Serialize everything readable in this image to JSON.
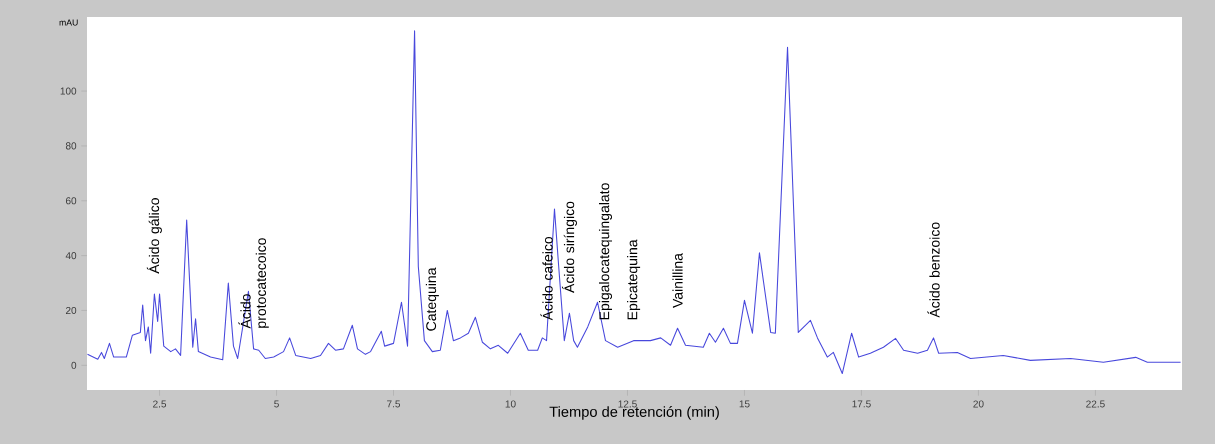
{
  "chart_data": {
    "type": "line",
    "xlabel": "Tiempo de retención (min)",
    "ylabel": "mAU",
    "x": [
      0.96,
      1.18,
      1.26,
      1.32,
      1.43,
      1.52,
      1.79,
      1.92,
      2.09,
      2.14,
      2.2,
      2.26,
      2.31,
      2.39,
      2.46,
      2.5,
      2.59,
      2.74,
      2.84,
      2.95,
      3.08,
      3.21,
      3.27,
      3.33,
      3.59,
      3.85,
      3.97,
      4.08,
      4.17,
      4.4,
      4.51,
      4.62,
      4.76,
      4.94,
      5.15,
      5.28,
      5.41,
      5.73,
      5.94,
      6.11,
      6.26,
      6.43,
      6.62,
      6.73,
      6.9,
      7.01,
      7.24,
      7.31,
      7.5,
      7.67,
      7.8,
      7.95,
      8.03,
      8.16,
      8.33,
      8.5,
      8.65,
      8.78,
      8.93,
      9.1,
      9.25,
      9.4,
      9.57,
      9.74,
      9.94,
      10.21,
      10.38,
      10.58,
      10.68,
      10.77,
      10.94,
      11.03,
      11.15,
      11.26,
      11.35,
      11.43,
      11.65,
      11.86,
      12.03,
      12.29,
      12.63,
      12.99,
      13.21,
      13.42,
      13.57,
      13.74,
      14.12,
      14.25,
      14.38,
      14.55,
      14.7,
      14.85,
      15.0,
      15.17,
      15.32,
      15.56,
      15.66,
      15.92,
      16.15,
      16.41,
      16.56,
      16.77,
      16.9,
      17.09,
      17.29,
      17.44,
      17.69,
      17.97,
      18.23,
      18.4,
      18.7,
      18.91,
      19.04,
      19.15,
      19.55,
      19.83,
      20.53,
      21.11,
      21.97,
      22.67,
      23.36,
      23.61,
      24.32
    ],
    "series": [
      {
        "color": "#4848dc",
        "values": [
          4,
          2.2,
          4.7,
          2.5,
          8,
          3,
          3,
          11,
          12,
          22,
          9,
          14,
          4.4,
          26,
          16,
          26,
          7,
          5,
          6,
          3.6,
          53,
          6.6,
          17,
          5,
          3,
          2,
          30,
          7,
          2.5,
          27,
          6,
          5.5,
          2.5,
          3,
          5,
          10,
          3.6,
          2.5,
          3.6,
          8,
          5.5,
          6,
          14.6,
          6,
          4,
          5,
          12.4,
          7,
          8,
          23,
          7,
          122,
          36,
          9,
          5,
          5.5,
          20,
          9,
          10,
          11.7,
          17.5,
          8.4,
          6,
          7.3,
          4.4,
          11.7,
          5.5,
          5.5,
          10,
          9,
          57,
          36,
          9,
          19,
          9,
          6.6,
          14,
          23,
          9,
          6.6,
          9,
          9,
          10,
          7.3,
          13.5,
          7.3,
          6.6,
          11.7,
          8.4,
          13.5,
          8,
          8,
          23.7,
          11.7,
          41,
          12,
          11.7,
          116,
          12,
          16.4,
          10,
          3,
          4.7,
          -3,
          11.7,
          3,
          4.4,
          6.6,
          9.8,
          5.5,
          4.4,
          5.5,
          10,
          4.4,
          4.7,
          2.5,
          3.6,
          1.8,
          2.5,
          1.1,
          2.9,
          1.1,
          1.1
        ]
      }
    ],
    "xlim": [
      0.95,
      24.35
    ],
    "ylim": [
      -9,
      127
    ],
    "xticks": [
      2.5,
      5,
      7.5,
      10,
      12.5,
      15,
      17.5,
      20,
      22.5
    ],
    "yticks": [
      0,
      20,
      40,
      60,
      80,
      100
    ],
    "annotations": [
      {
        "text": "Ácido gálico",
        "x": 2.39,
        "y": 26
      },
      {
        "text": "Ácido protocatecoico",
        "x": 4.51,
        "y": 6
      },
      {
        "text": "Catequina",
        "x": 8.33,
        "y": 5
      },
      {
        "text": "Ácido cafeico",
        "x": 10.77,
        "y": 9
      },
      {
        "text": "Ácido siríngico",
        "x": 11.26,
        "y": 19
      },
      {
        "text": "Epigalocatequingalato",
        "x": 12.03,
        "y": 9
      },
      {
        "text": "Epicatequina",
        "x": 12.63,
        "y": 9
      },
      {
        "text": "Vainillina",
        "x": 13.57,
        "y": 13.5
      },
      {
        "text": "Ácido benzoico",
        "x": 19.04,
        "y": 10
      }
    ]
  }
}
